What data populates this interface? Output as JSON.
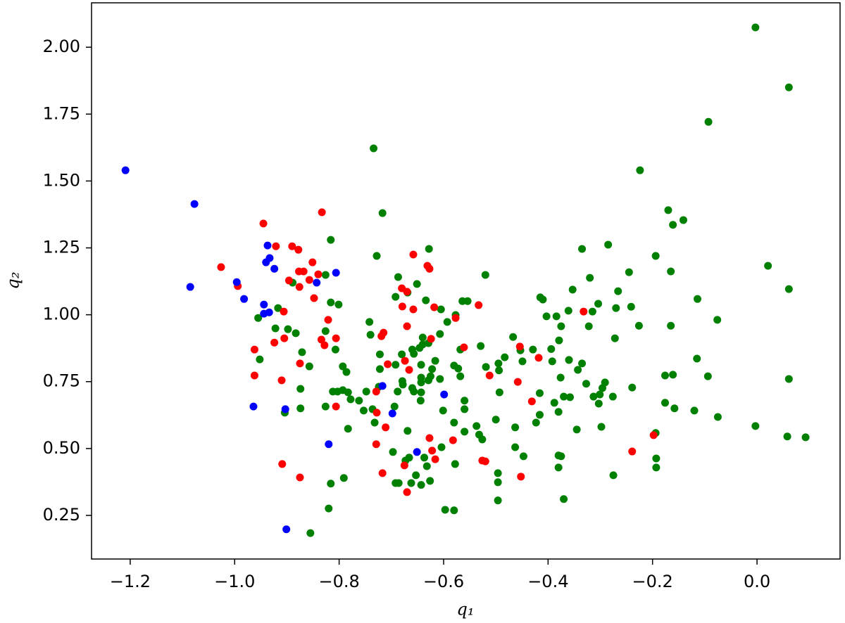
{
  "chart_data": {
    "type": "scatter",
    "x_label": "q₁",
    "y_label": "q₂",
    "xlim": [
      -1.274,
      0.159
    ],
    "ylim": [
      0.087,
      2.166
    ],
    "xticks": [
      {
        "value": -1.2,
        "label": "−1.2"
      },
      {
        "value": -1.0,
        "label": "−1.0"
      },
      {
        "value": -0.8,
        "label": "−0.8"
      },
      {
        "value": -0.6,
        "label": "−0.6"
      },
      {
        "value": -0.4,
        "label": "−0.4"
      },
      {
        "value": -0.2,
        "label": "−0.2"
      },
      {
        "value": 0,
        "label": "0.0"
      }
    ],
    "yticks": [
      0.25,
      {
        "value": 0.5,
        "label": "0.50"
      },
      0.75,
      {
        "value": 1,
        "label": "1.00"
      },
      1.25,
      {
        "value": 1.5,
        "label": "1.50"
      },
      1.75,
      {
        "value": 2,
        "label": "2.00"
      }
    ],
    "grid": false,
    "series": [
      {
        "color": "#008000",
        "x": [
          -0.003,
          0.061,
          -0.093,
          -0.224,
          -0.734,
          -0.717,
          -0.816,
          -0.728,
          -0.628,
          -0.17,
          -0.141,
          -0.161,
          -0.285,
          -0.335,
          -0.194,
          0.021,
          -0.165,
          -0.52,
          -0.245,
          -0.32,
          -0.687,
          -0.889,
          -0.826,
          -0.651,
          -0.353,
          -0.266,
          0.061,
          -0.669,
          -0.415,
          -0.114,
          -0.41,
          -0.692,
          -0.801,
          -0.816,
          -0.564,
          -0.554,
          -0.634,
          -0.304,
          -0.605,
          -0.241,
          -0.27,
          -0.315,
          -0.361,
          -0.403,
          -0.384,
          -0.577,
          -0.593,
          -0.742,
          -0.917,
          -0.955,
          -0.375,
          -0.322,
          -0.165,
          -0.226,
          -0.076,
          -0.826,
          -0.922,
          -0.898,
          -0.883,
          -0.74,
          -0.607,
          -0.64,
          -0.467,
          -0.64,
          -0.657,
          -0.629,
          -0.66,
          -0.646,
          -0.568,
          -0.529,
          -0.453,
          -0.429,
          -0.394,
          -0.379,
          -0.807,
          -0.871,
          -0.722,
          -0.68,
          -0.483,
          -0.495,
          -0.449,
          -0.36,
          -0.392,
          -0.335,
          -0.272,
          -0.115,
          -0.952,
          -0.616,
          -0.692,
          -0.643,
          -0.58,
          -0.572,
          -0.622,
          -0.722,
          -0.793,
          -0.857,
          -0.786,
          -0.568,
          -0.343,
          -0.519,
          -0.494,
          -0.625,
          -0.607,
          -0.643,
          -0.679,
          -0.66,
          -0.643,
          -0.629,
          -0.678,
          -0.376,
          -0.327,
          -0.291,
          0.061,
          -0.176,
          -0.161,
          -0.094,
          -0.239,
          -0.296,
          -0.301,
          -0.874,
          -0.812,
          -0.803,
          -0.793,
          -0.783,
          -0.748,
          -0.724,
          -0.688,
          -0.657,
          -0.643,
          -0.493,
          -0.416,
          -0.37,
          -0.358,
          -0.313,
          -0.276,
          -0.303,
          -0.778,
          -0.762,
          -0.753,
          -0.736,
          -0.694,
          -0.644,
          -0.56,
          -0.56,
          -0.388,
          -0.38,
          -0.176,
          -0.158,
          -0.12,
          -0.075,
          -0.601,
          -0.904,
          -0.874,
          -0.826,
          -0.5,
          -0.416,
          -0.423,
          -0.298,
          -0.345,
          -0.463,
          -0.783,
          -0.732,
          -0.669,
          -0.58,
          -0.56,
          -0.537,
          -0.532,
          -0.526,
          -0.003,
          0.058,
          0.093,
          -0.194,
          -0.604,
          -0.697,
          -0.666,
          -0.673,
          -0.637,
          -0.632,
          -0.578,
          -0.447,
          -0.463,
          -0.38,
          -0.375,
          -0.193,
          -0.193,
          -0.496,
          -0.496,
          -0.38,
          -0.275,
          -0.37,
          -0.496,
          -0.791,
          -0.816,
          -0.692,
          -0.686,
          -0.653,
          -0.662,
          -0.643,
          -0.626,
          -0.597,
          -0.58,
          -0.82,
          -0.855
        ],
        "values": [
          2.074,
          1.85,
          1.721,
          1.54,
          1.622,
          1.38,
          1.28,
          1.22,
          1.246,
          1.391,
          1.354,
          1.336,
          1.262,
          1.246,
          1.22,
          1.183,
          1.162,
          1.149,
          1.159,
          1.138,
          1.141,
          1.12,
          1.149,
          1.115,
          1.094,
          1.088,
          1.096,
          1.083,
          1.065,
          1.059,
          1.057,
          1.067,
          1.038,
          1.046,
          1.051,
          1.051,
          1.054,
          1.041,
          1.02,
          1.03,
          1.025,
          1.012,
          1.015,
          0.994,
          0.994,
          0.999,
          0.973,
          0.973,
          1.025,
          0.988,
          0.957,
          0.957,
          0.959,
          0.959,
          0.981,
          0.939,
          0.949,
          0.946,
          0.931,
          0.925,
          0.928,
          0.915,
          0.917,
          0.889,
          0.854,
          0.894,
          0.87,
          0.876,
          0.87,
          0.883,
          0.867,
          0.87,
          0.872,
          0.904,
          0.87,
          0.86,
          0.852,
          0.852,
          0.841,
          0.818,
          0.826,
          0.831,
          0.826,
          0.818,
          0.912,
          0.836,
          0.833,
          0.828,
          0.813,
          0.813,
          0.81,
          0.799,
          0.797,
          0.797,
          0.807,
          0.807,
          0.786,
          0.77,
          0.794,
          0.805,
          0.792,
          0.77,
          0.76,
          0.765,
          0.752,
          0.726,
          0.747,
          0.755,
          0.739,
          0.765,
          0.742,
          0.747,
          0.76,
          0.773,
          0.776,
          0.77,
          0.728,
          0.726,
          0.702,
          0.723,
          0.713,
          0.713,
          0.718,
          0.71,
          0.713,
          0.731,
          0.713,
          0.713,
          0.71,
          0.71,
          0.707,
          0.694,
          0.692,
          0.694,
          0.694,
          0.668,
          0.684,
          0.679,
          0.642,
          0.647,
          0.657,
          0.679,
          0.679,
          0.647,
          0.671,
          0.637,
          0.671,
          0.65,
          0.642,
          0.618,
          0.642,
          0.634,
          0.65,
          0.657,
          0.608,
          0.626,
          0.597,
          0.581,
          0.571,
          0.579,
          0.574,
          0.597,
          0.566,
          0.597,
          0.563,
          0.584,
          0.552,
          0.534,
          0.584,
          0.545,
          0.542,
          0.558,
          0.505,
          0.487,
          0.466,
          0.455,
          0.466,
          0.434,
          0.442,
          0.471,
          0.505,
          0.474,
          0.471,
          0.463,
          0.429,
          0.408,
          0.374,
          0.429,
          0.4,
          0.311,
          0.306,
          0.39,
          0.369,
          0.371,
          0.371,
          0.4,
          0.371,
          0.364,
          0.379,
          0.271,
          0.269,
          0.276,
          0.184
        ]
      },
      {
        "color": "#ff0000",
        "x": [
          -1.026,
          -0.994,
          -0.945,
          -0.921,
          -0.89,
          -0.878,
          -0.851,
          -0.877,
          -0.868,
          -0.857,
          -0.876,
          -0.896,
          -0.833,
          -0.84,
          -0.848,
          -0.906,
          -0.821,
          -0.806,
          -0.834,
          -0.828,
          -0.924,
          -0.905,
          -0.962,
          -0.962,
          -0.91,
          -0.875,
          -0.806,
          -0.909,
          -0.875,
          -0.658,
          -0.631,
          -0.627,
          -0.68,
          -0.67,
          -0.679,
          -0.658,
          -0.618,
          -0.577,
          -0.533,
          -0.715,
          -0.719,
          -0.624,
          -0.707,
          -0.674,
          -0.666,
          -0.729,
          -0.728,
          -0.711,
          -0.67,
          -0.729,
          -0.627,
          -0.582,
          -0.622,
          -0.616,
          -0.717,
          -0.675,
          -0.67,
          -0.561,
          -0.512,
          -0.526,
          -0.52,
          -0.454,
          -0.458,
          -0.431,
          -0.418,
          -0.452,
          -0.332,
          -0.239,
          -0.198
        ],
        "values": [
          1.178,
          1.107,
          1.341,
          1.256,
          1.256,
          1.243,
          1.196,
          1.162,
          1.162,
          1.13,
          1.104,
          1.128,
          1.383,
          1.151,
          1.062,
          1.012,
          0.981,
          0.912,
          0.907,
          0.886,
          0.896,
          0.912,
          0.87,
          0.773,
          0.755,
          0.818,
          0.657,
          0.442,
          0.392,
          1.225,
          1.183,
          1.172,
          1.099,
          1.086,
          1.031,
          1.02,
          1.028,
          0.988,
          1.036,
          0.933,
          0.92,
          0.91,
          0.815,
          0.828,
          0.794,
          0.713,
          0.634,
          0.579,
          0.957,
          0.516,
          0.539,
          0.531,
          0.492,
          0.46,
          0.408,
          0.437,
          0.337,
          0.878,
          0.773,
          0.455,
          0.452,
          0.881,
          0.749,
          0.676,
          0.839,
          0.395,
          1.012,
          0.489,
          0.55
        ]
      },
      {
        "color": "#0000ff",
        "x": [
          -1.209,
          -1.077,
          -1.085,
          -0.996,
          -0.982,
          -0.944,
          -0.937,
          -0.933,
          -0.94,
          -0.924,
          -0.944,
          -0.934,
          -0.843,
          -0.806,
          -0.964,
          -0.903,
          -0.717,
          -0.698,
          -0.599,
          -0.82,
          -0.651,
          -0.901
        ],
        "values": [
          1.54,
          1.414,
          1.104,
          1.122,
          1.059,
          1.038,
          1.259,
          1.212,
          1.196,
          1.172,
          1.004,
          1.009,
          1.12,
          1.157,
          0.657,
          0.647,
          0.734,
          0.631,
          0.702,
          0.516,
          0.487,
          0.198
        ]
      }
    ]
  }
}
